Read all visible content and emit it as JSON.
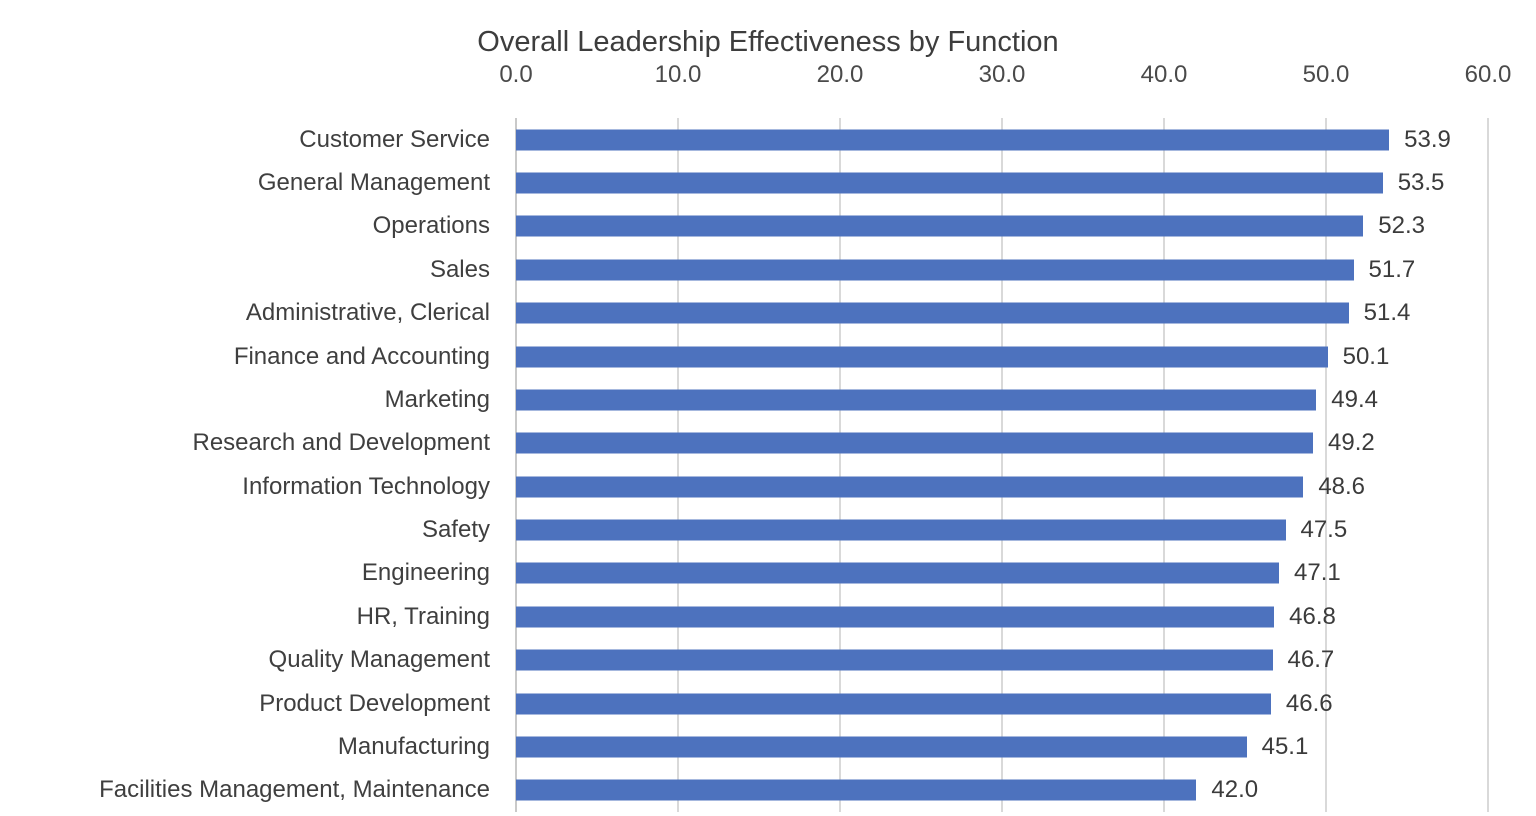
{
  "chart_data": {
    "type": "bar",
    "orientation": "horizontal",
    "title": "Overall Leadership Effectiveness by Function",
    "categories": [
      "Customer Service",
      "General Management",
      "Operations",
      "Sales",
      "Administrative, Clerical",
      "Finance and Accounting",
      "Marketing",
      "Research and Development",
      "Information Technology",
      "Safety",
      "Engineering",
      "HR, Training",
      "Quality Management",
      "Product Development",
      "Manufacturing",
      "Facilities Management, Maintenance"
    ],
    "values": [
      53.9,
      53.5,
      52.3,
      51.7,
      51.4,
      50.1,
      49.4,
      49.2,
      48.6,
      47.5,
      47.1,
      46.8,
      46.7,
      46.6,
      45.1,
      42.0
    ],
    "value_labels": [
      "53.9",
      "53.5",
      "52.3",
      "51.7",
      "51.4",
      "50.1",
      "49.4",
      "49.2",
      "48.6",
      "47.5",
      "47.1",
      "46.8",
      "46.7",
      "46.6",
      "45.1",
      "42.0"
    ],
    "x_ticks": [
      "0.0",
      "10.0",
      "20.0",
      "30.0",
      "40.0",
      "50.0",
      "60.0"
    ],
    "x_tick_values": [
      0,
      10,
      20,
      30,
      40,
      50,
      60
    ],
    "xlim": [
      0,
      60
    ],
    "xlabel": "",
    "ylabel": "",
    "grid": true,
    "legend": false,
    "axis_position": "top",
    "bar_color": "#4d72be",
    "gridline_color": "#d9d9d9",
    "axis_line_color": "#c9c9c9",
    "title_color": "#3d3d3d",
    "label_color": "#3f3f3f",
    "tick_color": "#4a4a4a"
  }
}
